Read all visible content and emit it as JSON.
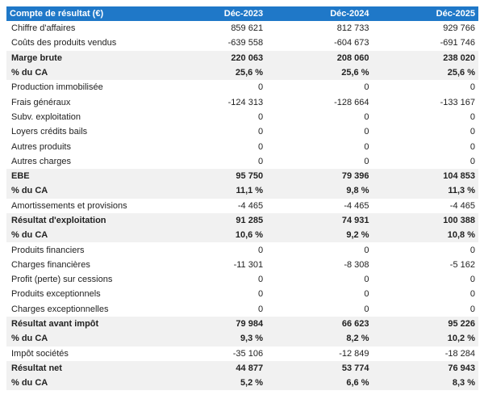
{
  "table": {
    "header": [
      "Compte de résultat (€)",
      "Déc-2023",
      "Déc-2024",
      "Déc-2025"
    ],
    "rows": [
      {
        "cells": [
          "Chiffre d'affaires",
          "859 621",
          "812 733",
          "929 766"
        ],
        "bold": false
      },
      {
        "cells": [
          "Coûts des produits vendus",
          "-639 558",
          "-604 673",
          "-691 746"
        ],
        "bold": false
      },
      {
        "cells": [
          "Marge brute",
          "220 063",
          "208 060",
          "238 020"
        ],
        "bold": true
      },
      {
        "cells": [
          "% du CA",
          "25,6 %",
          "25,6 %",
          "25,6 %"
        ],
        "bold": true
      },
      {
        "cells": [
          "Production immobilisée",
          "0",
          "0",
          "0"
        ],
        "bold": false
      },
      {
        "cells": [
          "Frais généraux",
          "-124 313",
          "-128 664",
          "-133 167"
        ],
        "bold": false
      },
      {
        "cells": [
          "Subv. exploitation",
          "0",
          "0",
          "0"
        ],
        "bold": false
      },
      {
        "cells": [
          "Loyers crédits bails",
          "0",
          "0",
          "0"
        ],
        "bold": false
      },
      {
        "cells": [
          "Autres produits",
          "0",
          "0",
          "0"
        ],
        "bold": false
      },
      {
        "cells": [
          "Autres charges",
          "0",
          "0",
          "0"
        ],
        "bold": false
      },
      {
        "cells": [
          "EBE",
          "95 750",
          "79 396",
          "104 853"
        ],
        "bold": true
      },
      {
        "cells": [
          "% du CA",
          "11,1 %",
          "9,8 %",
          "11,3 %"
        ],
        "bold": true
      },
      {
        "cells": [
          "Amortissements et provisions",
          "-4 465",
          "-4 465",
          "-4 465"
        ],
        "bold": false
      },
      {
        "cells": [
          "Résultat d'exploitation",
          "91 285",
          "74 931",
          "100 388"
        ],
        "bold": true
      },
      {
        "cells": [
          "% du CA",
          "10,6 %",
          "9,2 %",
          "10,8 %"
        ],
        "bold": true
      },
      {
        "cells": [
          "Produits financiers",
          "0",
          "0",
          "0"
        ],
        "bold": false
      },
      {
        "cells": [
          "Charges financières",
          "-11 301",
          "-8 308",
          "-5 162"
        ],
        "bold": false
      },
      {
        "cells": [
          "Profit (perte) sur cessions",
          "0",
          "0",
          "0"
        ],
        "bold": false
      },
      {
        "cells": [
          "Produits exceptionnels",
          "0",
          "0",
          "0"
        ],
        "bold": false
      },
      {
        "cells": [
          "Charges exceptionnelles",
          "0",
          "0",
          "0"
        ],
        "bold": false
      },
      {
        "cells": [
          "Résultat avant impôt",
          "79 984",
          "66 623",
          "95 226"
        ],
        "bold": true
      },
      {
        "cells": [
          "% du CA",
          "9,3 %",
          "8,2 %",
          "10,2 %"
        ],
        "bold": true
      },
      {
        "cells": [
          "Impôt sociétés",
          "-35 106",
          "-12 849",
          "-18 284"
        ],
        "bold": false
      },
      {
        "cells": [
          "Résultat net",
          "44 877",
          "53 774",
          "76 943"
        ],
        "bold": true
      },
      {
        "cells": [
          "% du CA",
          "5,2 %",
          "6,6 %",
          "8,3 %"
        ],
        "bold": true
      }
    ]
  }
}
